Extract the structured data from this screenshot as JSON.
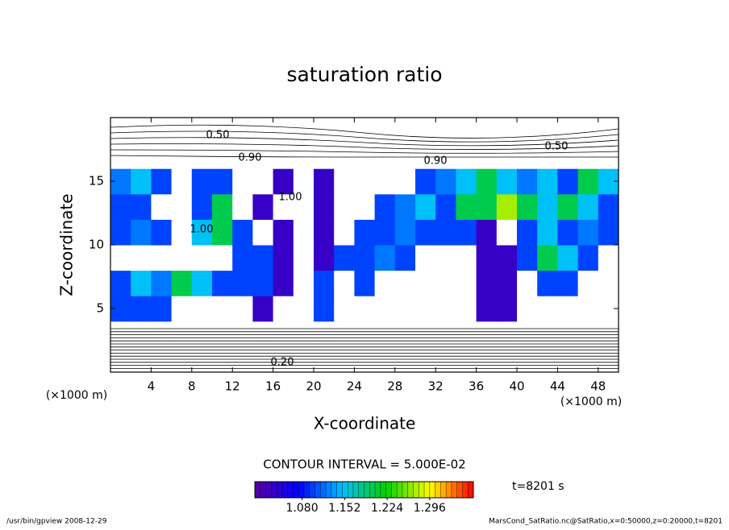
{
  "chart_data": {
    "type": "contour",
    "title": "saturation ratio",
    "xlabel": "X-coordinate",
    "ylabel": "Z-coordinate",
    "x_unit_labels": [
      "(×1000 m)",
      "(×1000 m)"
    ],
    "xlim": [
      0,
      50
    ],
    "ylim": [
      0,
      20
    ],
    "xticks": [
      4,
      8,
      12,
      16,
      20,
      24,
      28,
      32,
      36,
      40,
      44,
      48
    ],
    "yticks": [
      5,
      10,
      15
    ],
    "x": [
      1,
      3,
      5,
      7,
      9,
      11,
      13,
      15,
      17,
      19,
      21,
      23,
      25,
      27,
      29,
      31,
      33,
      35,
      37,
      39,
      41,
      43,
      45,
      47,
      49
    ],
    "z": [
      1,
      3,
      5,
      7,
      9,
      11,
      13,
      15,
      17,
      19
    ],
    "values": [
      [
        0.3,
        0.3,
        0.3,
        0.3,
        0.3,
        0.3,
        0.3,
        0.3,
        0.3,
        0.3,
        0.3,
        0.3,
        0.3,
        0.3,
        0.3,
        0.3,
        0.3,
        0.3,
        0.3,
        0.3,
        0.3,
        0.3,
        0.3,
        0.3,
        0.3
      ],
      [
        0.8,
        0.8,
        0.8,
        0.8,
        0.8,
        0.8,
        0.8,
        0.8,
        0.8,
        0.8,
        0.8,
        0.8,
        0.8,
        0.8,
        0.8,
        0.8,
        0.8,
        0.8,
        0.8,
        0.8,
        0.8,
        0.8,
        0.8,
        0.8,
        0.8
      ],
      [
        1.1,
        1.1,
        1.1,
        0.98,
        0.98,
        0.98,
        0.98,
        1.03,
        0.98,
        0.98,
        1.1,
        0.98,
        0.98,
        0.98,
        0.98,
        0.98,
        0.98,
        0.98,
        1.03,
        1.03,
        0.98,
        0.98,
        0.98,
        0.98,
        0.98
      ],
      [
        1.1,
        1.15,
        1.12,
        1.2,
        1.15,
        1.1,
        1.1,
        1.1,
        1.03,
        0.98,
        1.1,
        0.98,
        1.1,
        0.98,
        0.98,
        0.98,
        0.98,
        0.98,
        1.03,
        1.03,
        0.98,
        1.1,
        1.1,
        0.98,
        0.98
      ],
      [
        0.98,
        0.98,
        0.98,
        0.98,
        0.98,
        0.98,
        1.1,
        1.1,
        1.03,
        0.98,
        1.03,
        1.1,
        1.1,
        1.12,
        1.1,
        0.98,
        0.98,
        0.98,
        1.03,
        1.03,
        1.1,
        1.2,
        1.15,
        1.1,
        0.98
      ],
      [
        1.1,
        1.12,
        1.1,
        0.98,
        1.15,
        1.2,
        1.1,
        0.98,
        1.03,
        0.98,
        1.03,
        0.98,
        1.1,
        1.1,
        1.12,
        1.1,
        1.1,
        1.1,
        1.03,
        0.98,
        1.1,
        1.15,
        1.1,
        1.12,
        1.1
      ],
      [
        1.1,
        1.1,
        0.98,
        0.98,
        1.1,
        1.2,
        0.98,
        1.03,
        0.98,
        0.98,
        1.03,
        0.98,
        0.98,
        1.1,
        1.12,
        1.15,
        1.1,
        1.2,
        1.2,
        1.27,
        1.2,
        1.15,
        1.2,
        1.15,
        1.1
      ],
      [
        1.12,
        1.15,
        1.1,
        0.98,
        1.1,
        1.1,
        0.98,
        0.98,
        1.03,
        0.98,
        1.03,
        0.98,
        0.98,
        0.98,
        0.98,
        1.1,
        1.12,
        1.15,
        1.2,
        1.15,
        1.12,
        1.15,
        1.1,
        1.2,
        1.15
      ],
      [
        0.9,
        0.9,
        0.9,
        0.9,
        0.9,
        0.9,
        0.9,
        0.9,
        0.9,
        0.9,
        0.9,
        0.9,
        0.9,
        0.9,
        0.9,
        0.9,
        0.9,
        0.9,
        0.9,
        0.9,
        0.9,
        0.9,
        0.9,
        0.9,
        0.9
      ],
      [
        0.6,
        0.6,
        0.6,
        0.6,
        0.6,
        0.6,
        0.6,
        0.6,
        0.6,
        0.6,
        0.6,
        0.6,
        0.6,
        0.6,
        0.6,
        0.6,
        0.6,
        0.6,
        0.6,
        0.6,
        0.6,
        0.6,
        0.6,
        0.6,
        0.6
      ]
    ],
    "contour_labels": [
      "0.50",
      "0.90",
      "1.00",
      "1.00",
      "0.90",
      "0.50",
      "0.20"
    ],
    "clim": [
      1.0,
      1.37
    ],
    "colormap": [
      "#5a00a0",
      "#0000ff",
      "#00c0ff",
      "#00d000",
      "#ffff00",
      "#ff0000"
    ],
    "colorbar_ticks": [
      {
        "value": 1.08,
        "label": "1.080"
      },
      {
        "value": 1.152,
        "label": "1.152"
      },
      {
        "value": 1.224,
        "label": "1.224"
      },
      {
        "value": 1.296,
        "label": "1.296"
      }
    ],
    "contour_interval": "CONTOUR INTERVAL = 5.000E-02",
    "time": "t=8201 s",
    "footer_left": "/usr/bin/gpview   2008-12-29",
    "footer_right": "MarsCond_SatRatio.nc@SatRatio,x=0:50000,z=0:20000,t=8201"
  }
}
